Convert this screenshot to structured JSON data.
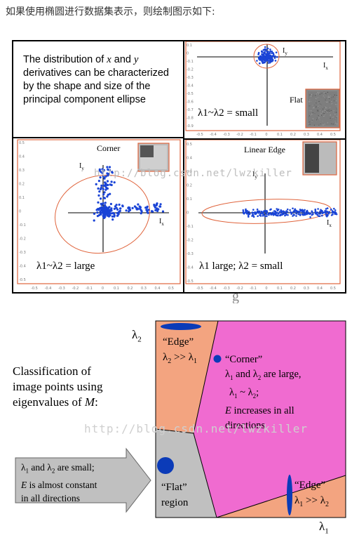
{
  "caption": "如果使用椭圆进行数据集表示，则绘制图示如下:",
  "intro_text": {
    "line1_a": "The distribution of ",
    "x": "x",
    "and": " and ",
    "y": "y",
    "line2": "derivatives can be characterized",
    "line3": "by the shape and size of the",
    "line4": "principal component ellipse"
  },
  "panels": {
    "flat": {
      "title": "Flat",
      "condition": "λ1~λ2 = small",
      "axis_x": "I",
      "axis_x_sub": "x",
      "axis_y": "I",
      "axis_y_sub": "y"
    },
    "corner": {
      "title": "Corner",
      "condition": "λ1~λ2 = large",
      "axis_x": "I",
      "axis_x_sub": "x",
      "axis_y": "I",
      "axis_y_sub": "y"
    },
    "edge": {
      "title": "Linear Edge",
      "condition": "λ1 large; λ2 = small",
      "axis_x": "I",
      "axis_x_sub": "x",
      "axis_y": "I",
      "axis_y_sub": "y"
    }
  },
  "ticks": {
    "top_y": [
      "0.1",
      "0",
      "-0.1",
      "-0.2",
      "-0.3",
      "-0.4",
      "-0.5",
      "-0.6",
      "-0.7",
      "-0.8",
      "-0.9"
    ],
    "top_x": [
      "-0.5",
      "-0.4",
      "-0.3",
      "-0.2",
      "-0.1",
      "0",
      "0.1",
      "0.2",
      "0.3",
      "0.4",
      "0.5"
    ],
    "bot_y": [
      "0.5",
      "0.4",
      "0.3",
      "0.2",
      "0.1",
      "0",
      "-0.1",
      "-0.2",
      "-0.3",
      "-0.4",
      "-0.5"
    ],
    "bot_x": [
      "-0.5",
      "-0.4",
      "-0.3",
      "-0.2",
      "-0.1",
      "0",
      "0.1",
      "0.2",
      "0.3",
      "0.4",
      "0.5"
    ]
  },
  "watermark": "http://blog.csdn.net/lwzkiller",
  "watermark_top": "http://blog.csdn.net/lwzkiller",
  "cut_text": "g",
  "classification": {
    "title_lines": [
      "Classification of",
      "image points using",
      "eigenvalues of "
    ],
    "title_M": "M",
    "title_end": ":",
    "lambda1_axis": "λ",
    "lambda1_sub": "1",
    "lambda2_axis": "λ",
    "lambda2_sub": "2",
    "edge_top": {
      "label": "“Edge”",
      "rel_a": "λ",
      "rel_a_sub": "2",
      "rel_op": " >> ",
      "rel_b": "λ",
      "rel_b_sub": "1"
    },
    "corner": {
      "label": "“Corner”",
      "l1": "λ",
      "l1_sub": "1",
      "and": " and ",
      "l2": "λ",
      "l2_sub": "2",
      "large": " are large,",
      "sim_a": "λ",
      "sim_a_sub": "1",
      "sim": " ~ ",
      "sim_b": "λ",
      "sim_b_sub": "2",
      "sim_end": ";",
      "E": "E",
      "inc": " increases in all",
      "dirs": "directions"
    },
    "flat": {
      "label": "“Flat”",
      "label2": "region"
    },
    "edge_right": {
      "label": "“Edge”",
      "rel_a": "λ",
      "rel_a_sub": "1",
      "rel_op": " >> ",
      "rel_b": "λ",
      "rel_b_sub": "2"
    },
    "callout": {
      "l1": "λ",
      "l1_sub": "1",
      "and": " and ",
      "l2": "λ",
      "l2_sub": "2",
      "small": " are small;",
      "E": "E",
      "const": " is almost constant",
      "dirs": "in all directions"
    }
  },
  "colors": {
    "pink": "#f06bd0",
    "orange": "#f3a480",
    "gray": "#c0c0c0",
    "blue": "#0b3bb8",
    "red_frame": "#e0643c"
  }
}
